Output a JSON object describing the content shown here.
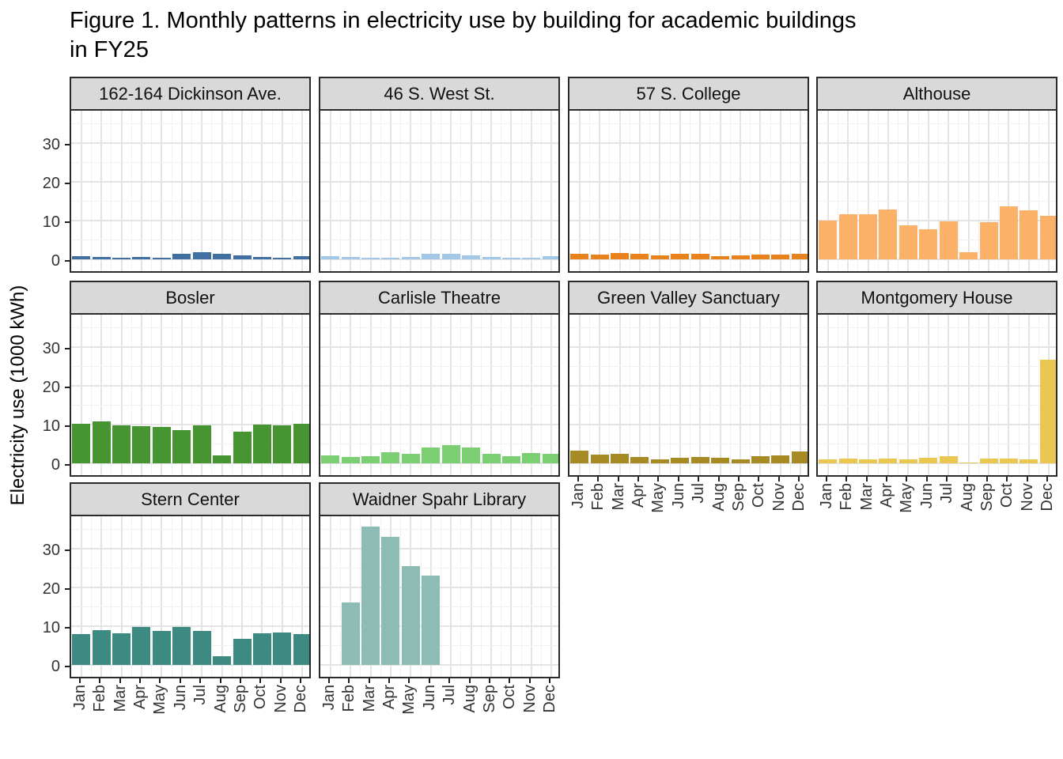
{
  "figure": {
    "title_line1": "Figure 1. Monthly patterns in electricity use by building for academic buildings",
    "title_line2": "in FY25",
    "ylabel": "Electricity use (1000 kWh)"
  },
  "theme": {
    "strip_bg": "#D9D9D9",
    "panel_border": "#2B2B2B",
    "grid_major": "#E4E4E4",
    "grid_minor": "#F1F1F1",
    "tick_color": "#222222",
    "tick_label_color": "#333333"
  },
  "chart_data": {
    "type": "bar",
    "title": "Figure 1. Monthly patterns in electricity use by building for academic buildings in FY25",
    "xlabel": "",
    "ylabel": "Electricity use (1000 kWh)",
    "categories": [
      "Jan",
      "Feb",
      "Mar",
      "Apr",
      "May",
      "Jun",
      "Jul",
      "Aug",
      "Sep",
      "Oct",
      "Nov",
      "Dec"
    ],
    "y_ticks": [
      "0",
      "10",
      "20",
      "30"
    ],
    "y_tick_values": [
      0,
      10,
      20,
      30
    ],
    "y_minor_values": [
      5,
      15,
      25,
      35
    ],
    "ylim": [
      0,
      37.5
    ],
    "grid": true,
    "legend": "none",
    "facet_layout": {
      "columns": 4,
      "rows": 3,
      "shared_y": true
    },
    "facets": [
      {
        "name": "162-164 Dickinson Ave.",
        "color": "#426FA1",
        "values": [
          0.9,
          0.7,
          0.5,
          0.6,
          0.4,
          1.5,
          1.9,
          1.5,
          1.0,
          0.6,
          0.4,
          0.8
        ]
      },
      {
        "name": "46 S. West St.",
        "color": "#A3C7E6",
        "values": [
          0.75,
          0.6,
          0.4,
          0.4,
          0.55,
          1.35,
          1.4,
          1.1,
          0.7,
          0.4,
          0.45,
          0.75
        ]
      },
      {
        "name": "57 S. College",
        "color": "#E8821D",
        "values": [
          1.35,
          1.3,
          1.7,
          1.4,
          1.1,
          1.35,
          1.35,
          0.75,
          1.1,
          1.3,
          1.3,
          1.5
        ]
      },
      {
        "name": "Althouse",
        "color": "#FBB268",
        "values": [
          10.0,
          11.7,
          11.6,
          12.9,
          8.8,
          7.7,
          9.8,
          1.9,
          9.6,
          13.7,
          12.7,
          11.3
        ]
      },
      {
        "name": "Bosler",
        "color": "#479432",
        "values": [
          10.3,
          10.9,
          9.7,
          9.5,
          9.3,
          8.6,
          9.9,
          2.0,
          8.1,
          10.0,
          9.9,
          10.3
        ]
      },
      {
        "name": "Carlisle Theatre",
        "color": "#7BCE72",
        "values": [
          2.0,
          1.6,
          1.8,
          2.9,
          2.4,
          4.1,
          4.7,
          4.1,
          2.4,
          1.9,
          2.7,
          2.5
        ]
      },
      {
        "name": "Green Valley Sanctuary",
        "color": "#A68A24",
        "values": [
          3.2,
          2.3,
          2.4,
          1.6,
          1.1,
          1.4,
          1.6,
          1.4,
          1.1,
          1.8,
          2.0,
          3.1
        ]
      },
      {
        "name": "Montgomery House",
        "color": "#E9C750",
        "values": [
          1.1,
          1.2,
          1.0,
          1.3,
          1.0,
          1.4,
          1.9,
          0.2,
          1.2,
          1.3,
          1.0,
          26.8
        ]
      },
      {
        "name": "Stern Center",
        "color": "#3C8A82",
        "values": [
          7.9,
          9.0,
          8.2,
          9.7,
          8.7,
          9.8,
          8.8,
          2.2,
          6.7,
          8.1,
          8.4,
          7.9
        ]
      },
      {
        "name": "Waidner Spahr Library",
        "color": "#8CBCB4",
        "values": [
          0,
          16.1,
          35.8,
          33.0,
          25.5,
          23.1,
          0,
          0,
          0,
          0,
          0,
          0
        ]
      }
    ]
  }
}
